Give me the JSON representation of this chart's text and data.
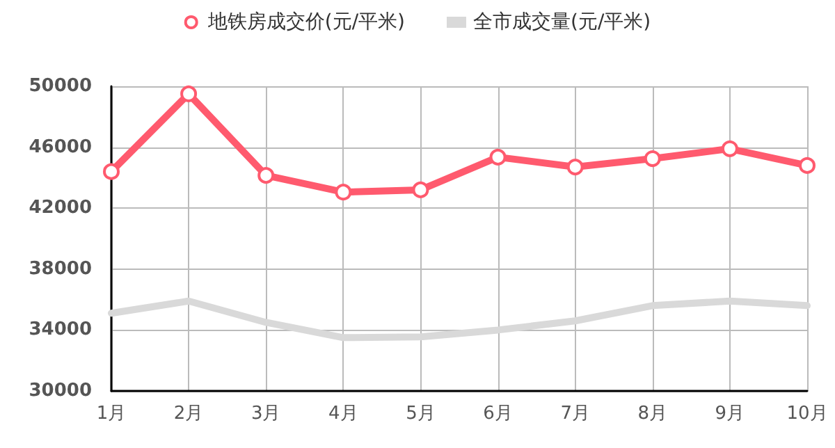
{
  "chart_data": {
    "type": "line",
    "categories": [
      "1月",
      "2月",
      "3月",
      "4月",
      "5月",
      "6月",
      "7月",
      "8月",
      "9月",
      "10月"
    ],
    "series": [
      {
        "name": "地铁房成交价(元/平米)",
        "color": "#ff5a6e",
        "marker": "circle",
        "values": [
          44400,
          49500,
          44150,
          43050,
          43200,
          45350,
          44700,
          45250,
          45900,
          44800
        ]
      },
      {
        "name": "全市成交量(元/平米)",
        "color": "#d9d9d9",
        "marker": "none",
        "values": [
          35100,
          35900,
          34500,
          33500,
          33550,
          34000,
          34600,
          35600,
          35900,
          35600
        ]
      }
    ],
    "ylim": [
      30000,
      50000
    ],
    "yticks": [
      30000,
      34000,
      38000,
      42000,
      46000,
      50000
    ],
    "grid": true,
    "legend": "top"
  }
}
